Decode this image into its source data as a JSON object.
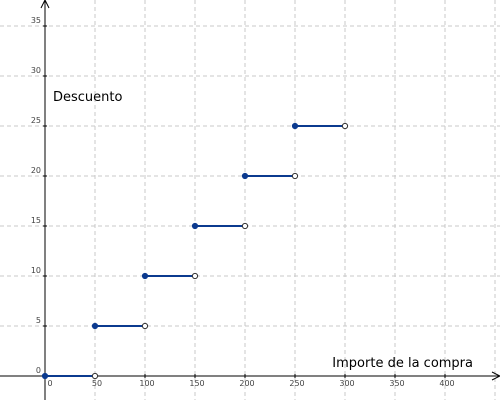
{
  "chart_data": {
    "type": "line",
    "xlabel": "Importe de la compra",
    "ylabel": "Descuento",
    "xlim": [
      -5,
      450
    ],
    "ylim": [
      -2,
      37.5
    ],
    "x_ticks": [
      0,
      50,
      100,
      150,
      200,
      250,
      300,
      350,
      400
    ],
    "y_ticks": [
      0,
      5,
      10,
      15,
      20,
      25,
      30,
      35
    ],
    "grid": true,
    "series": [
      {
        "segments": [
          {
            "x": [
              0,
              50
            ],
            "y": [
              0,
              0
            ],
            "start": "closed",
            "end": "open"
          },
          {
            "x": [
              50,
              100
            ],
            "y": [
              5,
              5
            ],
            "start": "closed",
            "end": "open"
          },
          {
            "x": [
              100,
              150
            ],
            "y": [
              10,
              10
            ],
            "start": "closed",
            "end": "open"
          },
          {
            "x": [
              150,
              200
            ],
            "y": [
              15,
              15
            ],
            "start": "closed",
            "end": "open"
          },
          {
            "x": [
              200,
              250
            ],
            "y": [
              20,
              20
            ],
            "start": "closed",
            "end": "open"
          },
          {
            "x": [
              250,
              300
            ],
            "y": [
              25,
              25
            ],
            "start": "closed",
            "end": "open"
          }
        ]
      }
    ]
  }
}
